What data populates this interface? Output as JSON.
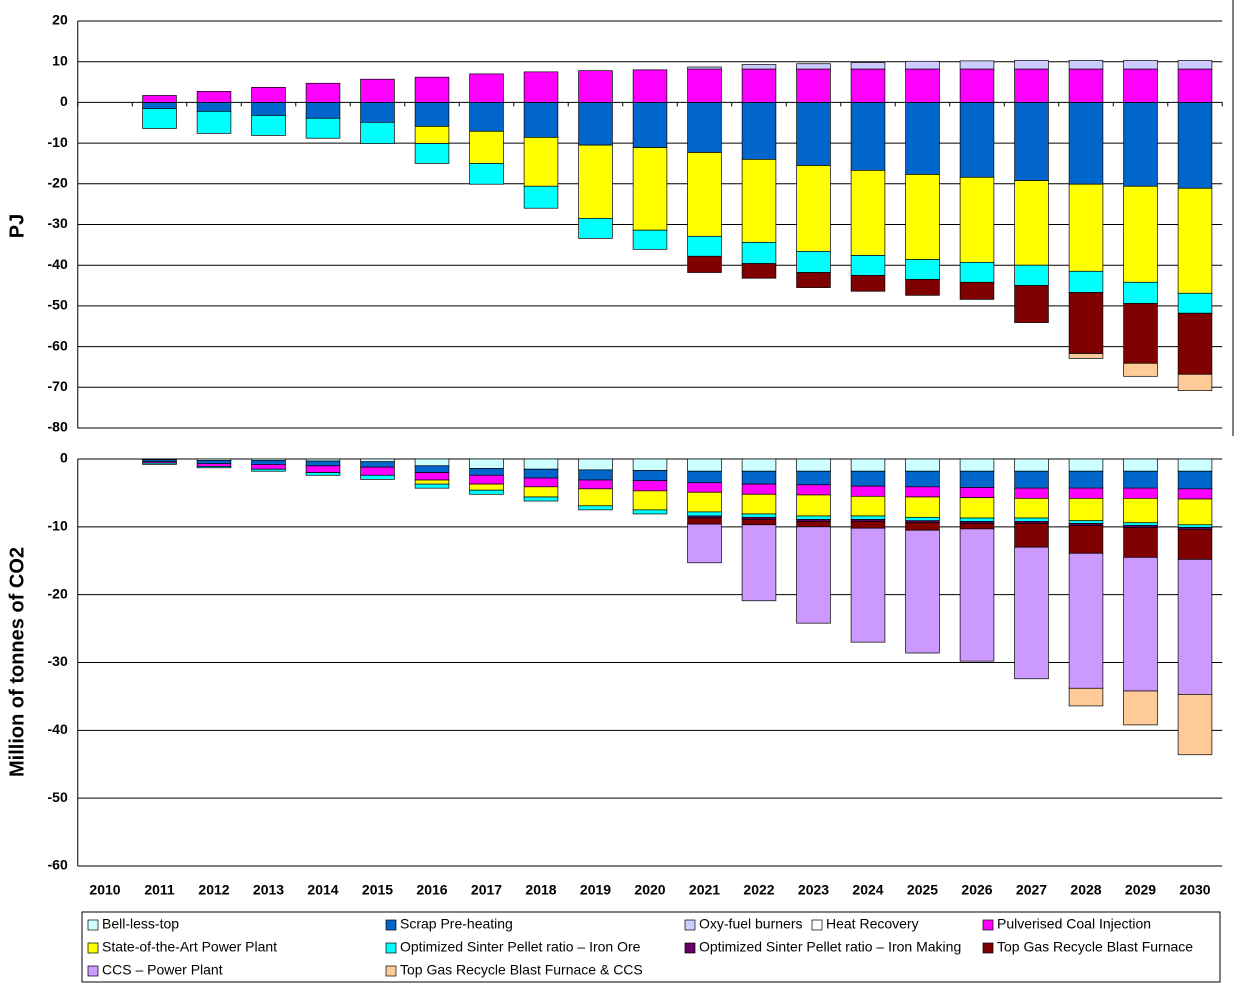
{
  "chart_data": [
    {
      "type": "bar",
      "stacked": true,
      "y_label": "PJ",
      "ylim": [
        -80,
        20
      ],
      "yticks": [
        20,
        10,
        0,
        -10,
        -20,
        -30,
        -40,
        -50,
        -60,
        -70,
        -80
      ],
      "grid": true,
      "series": [
        {
          "name": "Bell-less-top",
          "color": "#ccffff",
          "values": [
            0,
            0,
            0,
            0,
            0,
            0,
            0,
            0,
            0,
            0,
            0,
            0,
            0,
            0,
            0,
            0,
            0,
            0,
            0,
            0,
            0
          ]
        },
        {
          "name": "Scrap Pre-heating",
          "color": "#0066cc",
          "values": [
            0,
            -1.5,
            -2.2,
            -3.2,
            -3.9,
            -4.9,
            -5.9,
            -7.1,
            -8.6,
            -10.5,
            -11.1,
            -12.3,
            -14,
            -15.5,
            -16.7,
            -17.7,
            -18.4,
            -19.2,
            -20.1,
            -20.6,
            -21.1
          ]
        },
        {
          "name": "Oxy-fuel burners",
          "color": "#ccccff",
          "values": [
            0,
            0,
            0,
            0,
            0,
            0,
            0,
            0,
            0,
            0,
            0,
            0.5,
            1.1,
            1.3,
            1.6,
            1.9,
            2,
            2.1,
            2.1,
            2.1,
            2.1
          ]
        },
        {
          "name": "Heat Recovery",
          "color": "#ffffff",
          "values": [
            0,
            0,
            0,
            0,
            0,
            0,
            0,
            0,
            0,
            0,
            0,
            0,
            0,
            0,
            0,
            0,
            0,
            0,
            0,
            0,
            0
          ]
        },
        {
          "name": "Pulverised Coal Injection",
          "color": "#ff00ff",
          "values": [
            0,
            1.7,
            2.7,
            3.7,
            4.7,
            5.7,
            6.2,
            7,
            7.5,
            7.8,
            8,
            8.2,
            8.2,
            8.2,
            8.2,
            8.2,
            8.2,
            8.2,
            8.2,
            8.2,
            8.2
          ]
        },
        {
          "name": "State-of-the-Art Power Plant",
          "color": "#ffff00",
          "values": [
            0,
            0,
            0,
            0,
            0,
            0,
            -4.2,
            -7.9,
            -12,
            -18,
            -20.3,
            -20.6,
            -20.4,
            -21.1,
            -20.9,
            -20.9,
            -20.9,
            -20.8,
            -21.4,
            -23.6,
            -25.8
          ]
        },
        {
          "name": "Optimized Sinter Pellet ratio – Iron Ore",
          "color": "#00ffff",
          "values": [
            0,
            -4.9,
            -5.4,
            -4.9,
            -4.9,
            -5.2,
            -4.9,
            -5.1,
            -5.4,
            -4.9,
            -4.7,
            -4.9,
            -5.2,
            -5.2,
            -4.9,
            -4.9,
            -4.9,
            -5,
            -5.2,
            -5.2,
            -4.9
          ]
        },
        {
          "name": "Optimized Sinter Pellet ratio – Iron Making",
          "color": "#660066",
          "values": [
            0,
            0,
            0,
            0,
            0,
            0,
            0,
            0,
            0,
            0,
            0,
            0,
            0,
            0,
            0,
            0,
            0,
            0,
            0,
            0,
            0
          ]
        },
        {
          "name": "Top Gas Recycle Blast Furnace",
          "color": "#800000",
          "values": [
            0,
            0,
            0,
            0,
            0,
            0,
            0,
            0,
            0,
            0,
            0,
            -4,
            -3.6,
            -3.7,
            -3.9,
            -3.9,
            -4.2,
            -9.1,
            -15,
            -14.7,
            -15
          ]
        },
        {
          "name": "CCS – Power Plant",
          "color": "#cc99ff",
          "values": [
            0,
            0,
            0,
            0,
            0,
            0,
            0,
            0,
            0,
            0,
            0,
            0,
            0,
            0,
            0,
            0,
            0,
            0,
            0,
            0,
            0
          ]
        },
        {
          "name": "Top Gas Recycle Blast Furnace & CCS",
          "color": "#ffcc99",
          "values": [
            0,
            0,
            0,
            0,
            0,
            0,
            0,
            0,
            0,
            0,
            0,
            0,
            0,
            0,
            0,
            0,
            0,
            0,
            -1.2,
            -3.2,
            -4
          ]
        }
      ]
    },
    {
      "type": "bar",
      "stacked": true,
      "y_label": "Million of tonnes of CO2",
      "categories": [
        "2010",
        "2011",
        "2012",
        "2013",
        "2014",
        "2015",
        "2016",
        "2017",
        "2018",
        "2019",
        "2020",
        "2021",
        "2022",
        "2023",
        "2024",
        "2025",
        "2026",
        "2027",
        "2028",
        "2029",
        "2030"
      ],
      "ylim": [
        -60,
        0
      ],
      "yticks": [
        0,
        -10,
        -20,
        -30,
        -40,
        -50,
        -60
      ],
      "grid": true,
      "series": [
        {
          "color": "#ccffff",
          "values": [
            0,
            -0.1,
            -0.2,
            -0.2,
            -0.3,
            -0.4,
            -1,
            -1.4,
            -1.5,
            -1.6,
            -1.7,
            -1.8,
            -1.8,
            -1.8,
            -1.8,
            -1.8,
            -1.8,
            -1.8,
            -1.8,
            -1.8,
            -1.8
          ]
        },
        {
          "color": "#0066cc",
          "values": [
            0,
            -0.3,
            -0.5,
            -0.6,
            -0.7,
            -0.8,
            -1,
            -1,
            -1.3,
            -1.5,
            -1.5,
            -1.7,
            -1.9,
            -2,
            -2.2,
            -2.3,
            -2.4,
            -2.5,
            -2.5,
            -2.5,
            -2.6
          ]
        },
        {
          "color": "#ccccff",
          "values": [
            0,
            0,
            0,
            0,
            0,
            0,
            0,
            0,
            0,
            0,
            0,
            0,
            0,
            0,
            0,
            0,
            0,
            0,
            0,
            0,
            0
          ]
        },
        {
          "color": "#ffffff",
          "values": [
            0,
            0,
            0,
            0,
            0,
            0,
            0,
            0,
            0,
            0,
            0,
            0,
            0,
            0,
            0,
            0,
            0,
            0,
            0,
            0,
            0
          ]
        },
        {
          "color": "#ff00ff",
          "values": [
            0,
            -0.2,
            -0.4,
            -0.7,
            -1,
            -1.2,
            -1.1,
            -1.3,
            -1.3,
            -1.3,
            -1.5,
            -1.4,
            -1.5,
            -1.5,
            -1.5,
            -1.5,
            -1.5,
            -1.5,
            -1.5,
            -1.5,
            -1.5
          ]
        },
        {
          "color": "#ffff00",
          "values": [
            0,
            0,
            0,
            0,
            0,
            0,
            -0.6,
            -0.9,
            -1.5,
            -2.5,
            -2.8,
            -2.9,
            -2.9,
            -3.1,
            -2.9,
            -3,
            -3,
            -2.9,
            -3.3,
            -3.6,
            -3.8
          ]
        },
        {
          "color": "#00ffff",
          "values": [
            0,
            -0.2,
            -0.2,
            -0.3,
            -0.4,
            -0.6,
            -0.6,
            -0.6,
            -0.6,
            -0.6,
            -0.6,
            -0.6,
            -0.5,
            -0.5,
            -0.5,
            -0.5,
            -0.5,
            -0.5,
            -0.4,
            -0.4,
            -0.4
          ]
        },
        {
          "color": "#660066",
          "values": [
            0,
            0,
            0,
            0,
            0,
            0,
            0,
            0,
            0,
            0,
            0,
            -0.3,
            -0.3,
            -0.3,
            -0.3,
            -0.3,
            -0.3,
            -0.3,
            -0.3,
            -0.3,
            -0.3
          ]
        },
        {
          "color": "#800000",
          "values": [
            0,
            0,
            0,
            0,
            0,
            0,
            0,
            0,
            0,
            0,
            0,
            -0.9,
            -0.8,
            -0.8,
            -1,
            -1.1,
            -0.8,
            -3.5,
            -4.1,
            -4.4,
            -4.4
          ]
        },
        {
          "color": "#cc99ff",
          "values": [
            0,
            0,
            0,
            0,
            0,
            0,
            0,
            0,
            0,
            0,
            0,
            -5.7,
            -11.2,
            -14.2,
            -16.8,
            -18.1,
            -19.5,
            -19.4,
            -19.9,
            -19.7,
            -19.9
          ]
        },
        {
          "color": "#ffcc99",
          "values": [
            0,
            0,
            0,
            0,
            0,
            0,
            0,
            0,
            0,
            0,
            0,
            0,
            0,
            0,
            0,
            0,
            0,
            0,
            -2.6,
            -5,
            -8.9
          ]
        }
      ]
    }
  ]
}
